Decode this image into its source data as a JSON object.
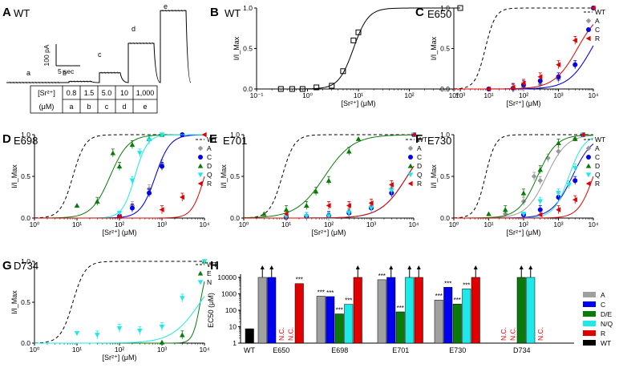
{
  "chart_data": [
    {
      "id": "A",
      "panel_letter": "A",
      "panel_label": "WT",
      "type": "trace",
      "scale_bar": {
        "current_label": "100 pA",
        "time_label": "5 sec"
      },
      "segment_labels": [
        "a",
        "b",
        "c",
        "d",
        "e"
      ],
      "segment_levels_pA": [
        0,
        5,
        45,
        180,
        330
      ],
      "table": {
        "row1_header": "[Sr²⁺]",
        "row2_header": "(μM)",
        "concentrations": [
          "0.8",
          "1.5",
          "5.0",
          "10",
          "1,000"
        ],
        "letters": [
          "a",
          "b",
          "c",
          "d",
          "e"
        ]
      }
    },
    {
      "id": "B",
      "panel_letter": "B",
      "panel_label": "WT",
      "type": "line",
      "xscale": "log",
      "xlim": [
        0.1,
        1000
      ],
      "ylim": [
        0,
        1.0
      ],
      "xlabel": "[Sr²⁺] (μM)",
      "ylabel": "I/I_Max",
      "xticks": [
        "10⁻¹",
        "10⁰",
        "10¹",
        "10²",
        "10³"
      ],
      "yticks": [
        "0.0",
        "0.5",
        "1.0"
      ],
      "series": [
        {
          "color": "#000000",
          "marker": "square-open",
          "ec50": 8,
          "hill": 3,
          "x": [
            0.3,
            0.5,
            0.8,
            1.5,
            3,
            5,
            8,
            10,
            1000
          ],
          "y": [
            0.0,
            0.0,
            0.0,
            0.02,
            0.04,
            0.22,
            0.6,
            0.7,
            1.0
          ]
        }
      ]
    },
    {
      "id": "C",
      "panel_letter": "C",
      "panel_label": "E650",
      "type": "line",
      "xscale": "log",
      "xlim": [
        1,
        10000
      ],
      "ylim": [
        0,
        1.0
      ],
      "xlabel": "[Sr²⁺] (μM)",
      "ylabel": "I/I_Max",
      "xticks": [
        "10⁰",
        "10¹",
        "10²",
        "10³",
        "10⁴"
      ],
      "yticks": [
        "0.0",
        "0.5",
        "1.0"
      ],
      "legend": [
        "WT",
        "A",
        "C",
        "R"
      ],
      "series": [
        {
          "name": "WT",
          "color": "#000000",
          "marker": "none",
          "dashed": true,
          "ec50": 8,
          "hill": 3
        },
        {
          "name": "A",
          "color": "#999999",
          "marker": "diamond",
          "ec50": 9000,
          "hill": 1.3,
          "x": [
            10,
            50,
            100,
            300,
            1000,
            3000,
            10000
          ],
          "y": [
            0.0,
            0.01,
            0.02,
            0.06,
            0.12,
            0.3,
            1.0
          ]
        },
        {
          "name": "C",
          "color": "#0000ee",
          "marker": "circle",
          "ec50": 9000,
          "hill": 1.3,
          "x": [
            10,
            50,
            100,
            300,
            1000,
            3000,
            10000
          ],
          "y": [
            0.0,
            0.01,
            0.05,
            0.1,
            0.15,
            0.3,
            1.0
          ]
        },
        {
          "name": "R",
          "color": "#e00000",
          "marker": "triangle-left",
          "ec50": 3500,
          "hill": 1.3,
          "x": [
            10,
            50,
            100,
            300,
            1000,
            3000,
            10000
          ],
          "y": [
            0.0,
            0.02,
            0.07,
            0.15,
            0.3,
            0.6,
            1.0
          ]
        }
      ]
    },
    {
      "id": "D",
      "panel_letter": "D",
      "panel_label": "E698",
      "type": "line",
      "xscale": "log",
      "xlim": [
        1,
        10000
      ],
      "ylim": [
        0,
        1.0
      ],
      "xlabel": "[Sr²⁺] (μM)",
      "ylabel": "I/I_Max",
      "xticks": [
        "10⁰",
        "10¹",
        "10²",
        "10³",
        "10⁴"
      ],
      "yticks": [
        "0.0",
        "0.5",
        "1.0"
      ],
      "legend": [
        "WT",
        "A",
        "C",
        "D",
        "Q",
        "R"
      ],
      "series": [
        {
          "name": "WT",
          "color": "#000000",
          "marker": "none",
          "dashed": true,
          "ec50": 8,
          "hill": 3
        },
        {
          "name": "A",
          "color": "#999999",
          "marker": "diamond",
          "ec50": 700,
          "hill": 2.5,
          "x": [
            100,
            200,
            500,
            1000,
            3000
          ],
          "y": [
            0.03,
            0.15,
            0.35,
            0.65,
            1.0
          ]
        },
        {
          "name": "C",
          "color": "#0000ee",
          "marker": "circle",
          "ec50": 700,
          "hill": 2.5,
          "x": [
            100,
            200,
            500,
            1000,
            3000
          ],
          "y": [
            0.02,
            0.12,
            0.3,
            0.62,
            1.0
          ]
        },
        {
          "name": "D",
          "color": "#0a7a0a",
          "marker": "triangle-up",
          "ec50": 60,
          "hill": 2,
          "x": [
            10,
            30,
            70,
            100,
            200,
            500,
            1000
          ],
          "y": [
            0.15,
            0.2,
            0.78,
            0.62,
            0.88,
            0.95,
            1.0
          ]
        },
        {
          "name": "Q",
          "color": "#1ee8e8",
          "marker": "triangle-down",
          "ec50": 230,
          "hill": 3,
          "x": [
            100,
            200,
            300,
            500,
            1000
          ],
          "y": [
            0.06,
            0.45,
            0.78,
            0.93,
            1.0
          ]
        },
        {
          "name": "R",
          "color": "#e00000",
          "marker": "triangle-left",
          "ec50": 10000,
          "hill": 3,
          "x": [
            100,
            1000,
            3000,
            10000
          ],
          "y": [
            0.02,
            0.1,
            0.25,
            1.0
          ]
        }
      ]
    },
    {
      "id": "E",
      "panel_letter": "E",
      "panel_label": "E701",
      "type": "line",
      "xscale": "log",
      "xlim": [
        1,
        10000
      ],
      "ylim": [
        0,
        1.0
      ],
      "xlabel": "[Sr²⁺] (μM)",
      "ylabel": "I/I_Max",
      "xticks": [
        "10⁰",
        "10¹",
        "10²",
        "10³",
        "10⁴"
      ],
      "yticks": [
        "0.0",
        "0.5",
        "1.0"
      ],
      "legend": [
        "WT",
        "A",
        "C",
        "D",
        "Q",
        "R"
      ],
      "series": [
        {
          "name": "WT",
          "color": "#000000",
          "marker": "none",
          "dashed": true,
          "ec50": 8,
          "hill": 3
        },
        {
          "name": "A",
          "color": "#999999",
          "marker": "diamond",
          "ec50": 7000,
          "hill": 1.4,
          "x": [
            10,
            30,
            100,
            300,
            1000,
            3000,
            10000
          ],
          "y": [
            0.02,
            0.02,
            0.03,
            0.08,
            0.14,
            0.35,
            1.0
          ]
        },
        {
          "name": "C",
          "color": "#0000ee",
          "marker": "circle",
          "ec50": 7000,
          "hill": 1.4,
          "x": [
            10,
            30,
            100,
            300,
            1000,
            3000,
            10000
          ],
          "y": [
            0.01,
            0.02,
            0.03,
            0.06,
            0.12,
            0.3,
            1.0
          ]
        },
        {
          "name": "D",
          "color": "#0a7a0a",
          "marker": "triangle-up",
          "ec50": 80,
          "hill": 1.3,
          "x": [
            3,
            10,
            30,
            50,
            100,
            300,
            500
          ],
          "y": [
            0.05,
            0.1,
            0.15,
            0.32,
            0.45,
            0.8,
            0.95
          ]
        },
        {
          "name": "Q",
          "color": "#1ee8e8",
          "marker": "triangle-down",
          "ec50": 7000,
          "hill": 1.4,
          "x": [
            10,
            30,
            100,
            300,
            1000,
            3000,
            10000
          ],
          "y": [
            0.01,
            0.02,
            0.02,
            0.06,
            0.12,
            0.33,
            1.0
          ]
        },
        {
          "name": "R",
          "color": "#e00000",
          "marker": "triangle-left",
          "ec50": 7000,
          "hill": 1.4,
          "x": [
            10,
            100,
            300,
            1000,
            3000,
            10000
          ],
          "y": [
            0.05,
            0.15,
            0.15,
            0.18,
            0.4,
            1.0
          ]
        }
      ]
    },
    {
      "id": "F",
      "panel_letter": "F",
      "panel_label": "E730",
      "type": "line",
      "xscale": "log",
      "xlim": [
        1,
        10000
      ],
      "ylim": [
        0,
        1.0
      ],
      "xlabel": "[Sr²⁺] (μM)",
      "ylabel": "I/I_Max",
      "xticks": [
        "10⁰",
        "10¹",
        "10²",
        "10³",
        "10⁴"
      ],
      "yticks": [
        "0.0",
        "0.5",
        "1.0"
      ],
      "legend": [
        "WT",
        "A",
        "C",
        "D",
        "Q",
        "R"
      ],
      "series": [
        {
          "name": "WT",
          "color": "#000000",
          "marker": "none",
          "dashed": true,
          "ec50": 8,
          "hill": 3
        },
        {
          "name": "A",
          "color": "#999999",
          "marker": "diamond",
          "ec50": 450,
          "hill": 1.5,
          "x": [
            30,
            100,
            200,
            300,
            500,
            1000,
            3000
          ],
          "y": [
            0.05,
            0.2,
            0.5,
            0.45,
            0.72,
            0.8,
            0.95
          ]
        },
        {
          "name": "C",
          "color": "#0000ee",
          "marker": "circle",
          "ec50": 2500,
          "hill": 1.5,
          "x": [
            100,
            300,
            1000,
            3000,
            5000
          ],
          "y": [
            0.04,
            0.1,
            0.25,
            0.45,
            1.0
          ]
        },
        {
          "name": "D",
          "color": "#0a7a0a",
          "marker": "triangle-up",
          "ec50": 250,
          "hill": 1.6,
          "x": [
            10,
            30,
            100,
            300,
            1000,
            3000
          ],
          "y": [
            0.05,
            0.1,
            0.3,
            0.58,
            0.9,
            0.95
          ]
        },
        {
          "name": "Q",
          "color": "#1ee8e8",
          "marker": "triangle-down",
          "ec50": 2000,
          "hill": 2,
          "x": [
            100,
            300,
            1000,
            2000,
            3000,
            5000
          ],
          "y": [
            0.05,
            0.2,
            0.3,
            0.4,
            0.6,
            1.0
          ]
        },
        {
          "name": "R",
          "color": "#e00000",
          "marker": "triangle-left",
          "ec50": 10000,
          "hill": 2,
          "x": [
            300,
            1000,
            3000,
            5000
          ],
          "y": [
            0.04,
            0.1,
            0.22,
            1.0
          ]
        }
      ]
    },
    {
      "id": "G",
      "panel_letter": "G",
      "panel_label": "D734",
      "type": "line",
      "xscale": "log",
      "xlim": [
        1,
        10000
      ],
      "ylim": [
        0,
        1.0
      ],
      "xlabel": "[Sr²⁺] (μM)",
      "ylabel": "I/I_Max",
      "xticks": [
        "10⁰",
        "10¹",
        "10²",
        "10³",
        "10⁴"
      ],
      "yticks": [
        "0.0",
        "0.5",
        "1.0"
      ],
      "legend": [
        "WT",
        "E",
        "N"
      ],
      "series": [
        {
          "name": "WT",
          "color": "#000000",
          "marker": "none",
          "dashed": true,
          "ec50": 8,
          "hill": 3
        },
        {
          "name": "E",
          "color": "#0a7a0a",
          "marker": "triangle-up",
          "ec50": 8000,
          "hill": 5,
          "x": [
            1000,
            3000,
            10000
          ],
          "y": [
            0.01,
            0.1,
            1.0
          ]
        },
        {
          "name": "N",
          "color": "#1ee8e8",
          "marker": "triangle-down",
          "ec50": 8000,
          "hill": 1.3,
          "x": [
            10,
            30,
            100,
            300,
            1000,
            3000,
            10000
          ],
          "y": [
            0.12,
            0.1,
            0.18,
            0.15,
            0.2,
            0.55,
            1.0
          ]
        }
      ]
    },
    {
      "id": "H",
      "panel_letter": "H",
      "type": "bar",
      "yscale": "log",
      "ylim": [
        1,
        10000
      ],
      "ylabel": "EC50 (μM)",
      "yticks": [
        "1",
        "10",
        "100",
        "1000",
        "10000"
      ],
      "groups": [
        "WT",
        "E650",
        "E698",
        "E701",
        "E730",
        "D734"
      ],
      "legend": [
        "A",
        "C",
        "D/E",
        "N/Q",
        "R",
        "WT"
      ],
      "legend_colors": [
        "#a0a0a0",
        "#0000ee",
        "#0a7a0a",
        "#1ee8e8",
        "#e00000",
        "#000000"
      ],
      "nc_label": "N.C.",
      "sig_label": "***",
      "bars": [
        {
          "group": "WT",
          "series": "WT",
          "value": 7.5,
          "nc": false,
          "sig": false,
          "arrow": false
        },
        {
          "group": "E650",
          "series": "A",
          "value": 10000,
          "nc": false,
          "sig": false,
          "arrow": true
        },
        {
          "group": "E650",
          "series": "C",
          "value": 10000,
          "nc": false,
          "sig": false,
          "arrow": true
        },
        {
          "group": "E650",
          "series": "D/E",
          "value": null,
          "nc": true,
          "sig": false,
          "arrow": false
        },
        {
          "group": "E650",
          "series": "N/Q",
          "value": null,
          "nc": true,
          "sig": false,
          "arrow": false
        },
        {
          "group": "E650",
          "series": "R",
          "value": 4200,
          "nc": false,
          "sig": true,
          "arrow": false
        },
        {
          "group": "E698",
          "series": "A",
          "value": 720,
          "nc": false,
          "sig": true,
          "arrow": false
        },
        {
          "group": "E698",
          "series": "C",
          "value": 680,
          "nc": false,
          "sig": true,
          "arrow": false
        },
        {
          "group": "E698",
          "series": "D/E",
          "value": 60,
          "nc": false,
          "sig": true,
          "arrow": false
        },
        {
          "group": "E698",
          "series": "N/Q",
          "value": 230,
          "nc": false,
          "sig": true,
          "arrow": false
        },
        {
          "group": "E698",
          "series": "R",
          "value": 10000,
          "nc": false,
          "sig": false,
          "arrow": true
        },
        {
          "group": "E701",
          "series": "A",
          "value": 7200,
          "nc": false,
          "sig": true,
          "arrow": false
        },
        {
          "group": "E701",
          "series": "C",
          "value": 10000,
          "nc": false,
          "sig": false,
          "arrow": true
        },
        {
          "group": "E701",
          "series": "D/E",
          "value": 80,
          "nc": false,
          "sig": true,
          "arrow": false
        },
        {
          "group": "E701",
          "series": "N/Q",
          "value": 10000,
          "nc": false,
          "sig": false,
          "arrow": true
        },
        {
          "group": "E701",
          "series": "R",
          "value": 10000,
          "nc": false,
          "sig": false,
          "arrow": true
        },
        {
          "group": "E730",
          "series": "A",
          "value": 420,
          "nc": false,
          "sig": true,
          "arrow": false
        },
        {
          "group": "E730",
          "series": "C",
          "value": 2500,
          "nc": false,
          "sig": true,
          "arrow": false
        },
        {
          "group": "E730",
          "series": "D/E",
          "value": 240,
          "nc": false,
          "sig": true,
          "arrow": false
        },
        {
          "group": "E730",
          "series": "N/Q",
          "value": 2000,
          "nc": false,
          "sig": true,
          "arrow": false
        },
        {
          "group": "E730",
          "series": "R",
          "value": 10000,
          "nc": false,
          "sig": false,
          "arrow": true
        },
        {
          "group": "D734",
          "series": "A",
          "value": null,
          "nc": true,
          "sig": false,
          "arrow": false
        },
        {
          "group": "D734",
          "series": "C",
          "value": null,
          "nc": true,
          "sig": false,
          "arrow": false
        },
        {
          "group": "D734",
          "series": "D/E",
          "value": 10000,
          "nc": false,
          "sig": false,
          "arrow": true
        },
        {
          "group": "D734",
          "series": "N/Q",
          "value": 10000,
          "nc": false,
          "sig": false,
          "arrow": true
        },
        {
          "group": "D734",
          "series": "R",
          "value": null,
          "nc": true,
          "sig": false,
          "arrow": false
        }
      ]
    }
  ]
}
